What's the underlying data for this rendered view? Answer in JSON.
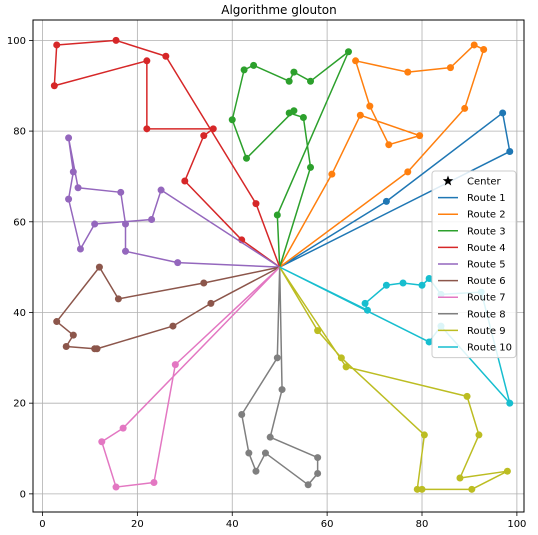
{
  "chart_data": {
    "type": "line",
    "title": "Algorithme glouton",
    "xlabel": "",
    "ylabel": "",
    "xlim": [
      -2,
      101.5
    ],
    "ylim": [
      -4,
      104.5
    ],
    "xticks": [
      0,
      20,
      40,
      60,
      80,
      100
    ],
    "yticks": [
      0,
      20,
      40,
      60,
      80,
      100
    ],
    "grid": true,
    "legend_position": "center-right",
    "center": {
      "name": "Center",
      "x": 50,
      "y": 50
    },
    "series": [
      {
        "name": "Route 1",
        "color": "#1f77b4",
        "points": [
          [
            72.5,
            64.5
          ],
          [
            97,
            84
          ],
          [
            98.5,
            75.5
          ]
        ]
      },
      {
        "name": "Route 2",
        "color": "#ff7f0e",
        "points": [
          [
            61,
            70.5
          ],
          [
            67,
            83.5
          ],
          [
            79.5,
            79
          ],
          [
            73,
            77
          ],
          [
            69,
            85.5
          ],
          [
            66,
            95.5
          ],
          [
            77,
            93
          ],
          [
            86,
            94
          ],
          [
            91,
            99
          ],
          [
            93,
            98
          ],
          [
            89,
            85
          ],
          [
            77,
            71
          ]
        ]
      },
      {
        "name": "Route 3",
        "color": "#2ca02c",
        "points": [
          [
            56.5,
            72
          ],
          [
            55,
            83
          ],
          [
            52,
            84
          ],
          [
            53,
            84.5
          ],
          [
            43,
            74
          ],
          [
            40,
            82.5
          ],
          [
            42.5,
            93.5
          ],
          [
            44.5,
            94.5
          ],
          [
            52,
            91
          ],
          [
            53,
            93
          ],
          [
            56.5,
            91
          ],
          [
            64.5,
            97.5
          ],
          [
            49.5,
            61.5
          ]
        ]
      },
      {
        "name": "Route 4",
        "color": "#d62728",
        "points": [
          [
            42,
            56
          ],
          [
            30,
            69
          ],
          [
            34,
            79
          ],
          [
            36,
            80.5
          ],
          [
            22,
            80.5
          ],
          [
            22,
            95.5
          ],
          [
            2.5,
            90
          ],
          [
            3,
            99
          ],
          [
            15.5,
            100
          ],
          [
            26,
            96.5
          ],
          [
            45,
            64
          ]
        ]
      },
      {
        "name": "Route 5",
        "color": "#9467bd",
        "points": [
          [
            28.5,
            51
          ],
          [
            17.5,
            53.5
          ],
          [
            17.5,
            59.5
          ],
          [
            16.5,
            66.5
          ],
          [
            7.5,
            67.5
          ],
          [
            5.5,
            78.5
          ],
          [
            6.5,
            71
          ],
          [
            5.5,
            65
          ],
          [
            8,
            54
          ],
          [
            11,
            59.5
          ],
          [
            23,
            60.5
          ],
          [
            25,
            67
          ]
        ]
      },
      {
        "name": "Route 6",
        "color": "#8c564b",
        "points": [
          [
            35.5,
            42
          ],
          [
            27.5,
            37
          ],
          [
            11.5,
            32
          ],
          [
            11,
            32
          ],
          [
            5,
            32.5
          ],
          [
            6.5,
            35
          ],
          [
            3,
            38
          ],
          [
            12,
            50
          ],
          [
            16,
            43
          ],
          [
            34,
            46.5
          ]
        ]
      },
      {
        "name": "Route 7",
        "color": "#e377c2",
        "points": [
          [
            28,
            28.5
          ],
          [
            23.5,
            2.5
          ],
          [
            15.5,
            1.5
          ],
          [
            12.5,
            11.5
          ],
          [
            17,
            14.5
          ]
        ]
      },
      {
        "name": "Route 8",
        "color": "#7f7f7f",
        "points": [
          [
            50.5,
            23
          ],
          [
            48,
            12.5
          ],
          [
            58,
            8
          ],
          [
            58,
            4.5
          ],
          [
            56,
            2
          ],
          [
            47,
            9
          ],
          [
            45,
            5
          ],
          [
            43.5,
            9
          ],
          [
            42,
            17.5
          ],
          [
            49.5,
            30
          ]
        ]
      },
      {
        "name": "Route 9",
        "color": "#bcbd22",
        "points": [
          [
            64,
            28
          ],
          [
            89.5,
            21.5
          ],
          [
            92,
            13
          ],
          [
            88,
            3.5
          ],
          [
            98,
            5
          ],
          [
            90.5,
            1
          ],
          [
            80,
            1
          ],
          [
            79,
            1
          ],
          [
            80.5,
            13
          ],
          [
            63,
            30
          ],
          [
            58,
            36
          ]
        ]
      },
      {
        "name": "Route 10",
        "color": "#17becf",
        "points": [
          [
            68.5,
            40.5
          ],
          [
            68,
            42
          ],
          [
            72.5,
            46
          ],
          [
            76,
            46.5
          ],
          [
            80,
            46
          ],
          [
            81.5,
            47.5
          ],
          [
            84,
            44
          ],
          [
            92.5,
            44.5
          ],
          [
            98.5,
            20
          ],
          [
            84,
            37
          ],
          [
            81.5,
            33.5
          ]
        ]
      }
    ]
  }
}
